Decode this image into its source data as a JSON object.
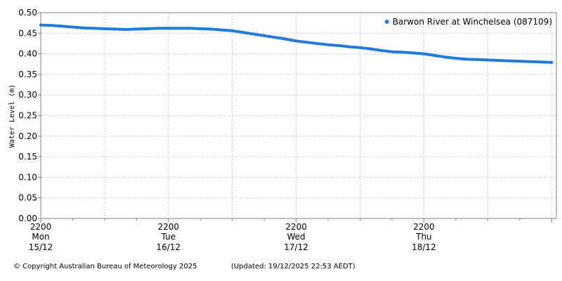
{
  "chart_data": {
    "type": "line",
    "ylabel": "Water Level (m)",
    "ylim": [
      0,
      0.5
    ],
    "y_ticks": [
      "0.00",
      "0.05",
      "0.10",
      "0.15",
      "0.20",
      "0.25",
      "0.30",
      "0.35",
      "0.40",
      "0.45",
      "0.50"
    ],
    "x_hours_range": [
      0,
      96
    ],
    "x_major_labels": [
      {
        "time": "2200",
        "day": "Mon",
        "date": "15/12"
      },
      {
        "time": "2200",
        "day": "Tue",
        "date": "16/12"
      },
      {
        "time": "2200",
        "day": "Wed",
        "date": "17/12"
      },
      {
        "time": "2200",
        "day": "Thu",
        "date": "18/12"
      }
    ],
    "grid": true,
    "legend_position": "top-right",
    "series": [
      {
        "name": "Barwon River at Winchelsea (087109)",
        "color": "#1e7be0",
        "x": [
          0,
          2,
          4,
          6,
          8,
          10,
          12,
          14,
          16,
          18,
          20,
          22,
          24,
          26,
          28,
          30,
          32,
          34,
          36,
          38,
          40,
          42,
          44,
          46,
          48,
          50,
          52,
          54,
          56,
          58,
          60,
          62,
          64,
          66,
          68,
          70,
          72,
          74,
          76,
          78,
          80,
          82,
          84,
          86,
          88,
          90,
          92,
          94,
          96
        ],
        "y": [
          0.47,
          0.469,
          0.467,
          0.465,
          0.463,
          0.462,
          0.461,
          0.46,
          0.459,
          0.46,
          0.461,
          0.462,
          0.462,
          0.462,
          0.462,
          0.461,
          0.46,
          0.458,
          0.456,
          0.452,
          0.448,
          0.444,
          0.44,
          0.436,
          0.431,
          0.428,
          0.425,
          0.422,
          0.42,
          0.417,
          0.415,
          0.412,
          0.408,
          0.405,
          0.404,
          0.402,
          0.4,
          0.396,
          0.392,
          0.389,
          0.387,
          0.386,
          0.385,
          0.384,
          0.383,
          0.382,
          0.381,
          0.38,
          0.379
        ]
      }
    ]
  },
  "footer": {
    "copyright": "© Copyright Australian Bureau of Meteorology 2025",
    "updated": "(Updated: 19/12/2025 22:53 AEDT)"
  }
}
